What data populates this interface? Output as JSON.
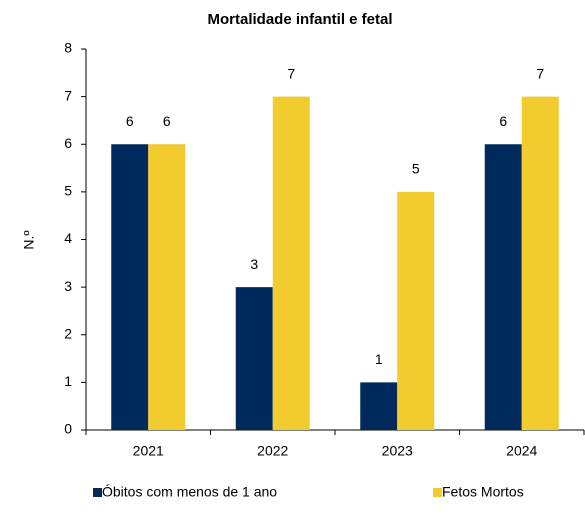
{
  "chart_data": {
    "type": "bar",
    "title": "Mortalidade infantil e fetal",
    "y_label": "N.º",
    "categories": [
      "2021",
      "2022",
      "2023",
      "2024"
    ],
    "series": [
      {
        "name": "Óbitos com menos de 1 ano",
        "color": "#002a5c",
        "values": [
          6,
          3,
          1,
          6
        ]
      },
      {
        "name": "Fetos Mortos",
        "color": "#f2cc2e",
        "values": [
          6,
          7,
          5,
          7
        ]
      }
    ],
    "ylim": [
      0,
      8
    ],
    "yticks": [
      0,
      1,
      2,
      3,
      4,
      5,
      6,
      7,
      8
    ],
    "grid": false,
    "legend": "bottom"
  }
}
